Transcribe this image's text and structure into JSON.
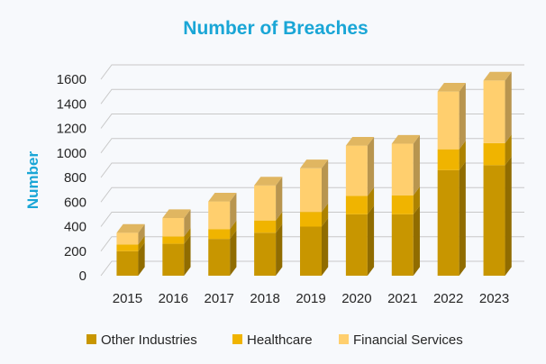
{
  "chart_data": {
    "type": "bar",
    "stacked": true,
    "three_d": true,
    "title": "Number of Breaches",
    "xlabel": "",
    "ylabel": "Number",
    "categories": [
      "2015",
      "2016",
      "2017",
      "2018",
      "2019",
      "2020",
      "2021",
      "2022",
      "2023"
    ],
    "series": [
      {
        "name": "Other Industries",
        "values": [
          200,
          260,
          300,
          350,
          400,
          500,
          500,
          860,
          900
        ],
        "color": "#c89600"
      },
      {
        "name": "Healthcare",
        "values": [
          55,
          60,
          80,
          100,
          120,
          150,
          155,
          170,
          180
        ],
        "color": "#f0b400"
      },
      {
        "name": "Financial Services",
        "values": [
          95,
          150,
          225,
          285,
          355,
          410,
          420,
          470,
          510
        ],
        "color": "#ffcf6e"
      }
    ],
    "ylim": [
      0,
      1600
    ],
    "yticks": [
      0,
      200,
      400,
      600,
      800,
      1000,
      1200,
      1400,
      1600
    ],
    "grid": true,
    "legend_position": "bottom",
    "title_color": "#1aa6d6",
    "ylabel_color": "#1aa6d6"
  }
}
